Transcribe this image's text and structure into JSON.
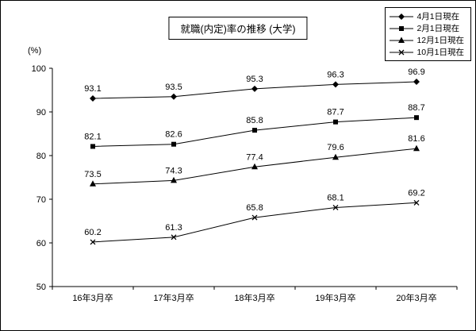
{
  "title": "就職(内定)率の推移 (大学)",
  "chart_data": {
    "type": "line",
    "title": "就職(内定)率の推移 (大学)",
    "ylabel": "(%)",
    "xlabel": "",
    "ylim": [
      50,
      100
    ],
    "yticks": [
      50,
      60,
      70,
      80,
      90,
      100
    ],
    "grid": false,
    "legend_position": "top-right",
    "categories": [
      "16年3月卒",
      "17年3月卒",
      "18年3月卒",
      "19年3月卒",
      "20年3月卒"
    ],
    "series": [
      {
        "name": "4月1日現在",
        "marker": "diamond",
        "color": "#000000",
        "values": [
          93.1,
          93.5,
          95.3,
          96.3,
          96.9
        ]
      },
      {
        "name": "2月1日現在",
        "marker": "square",
        "color": "#000000",
        "values": [
          82.1,
          82.6,
          85.8,
          87.7,
          88.7
        ]
      },
      {
        "name": "12月1日現在",
        "marker": "triangle",
        "color": "#000000",
        "values": [
          73.5,
          74.3,
          77.4,
          79.6,
          81.6
        ]
      },
      {
        "name": "10月1日現在",
        "marker": "x",
        "color": "#000000",
        "values": [
          60.2,
          61.3,
          65.8,
          68.1,
          69.2
        ]
      }
    ],
    "colors": {
      "line": "#000000",
      "background": "#ffffff",
      "frame_border": "#000000"
    }
  }
}
